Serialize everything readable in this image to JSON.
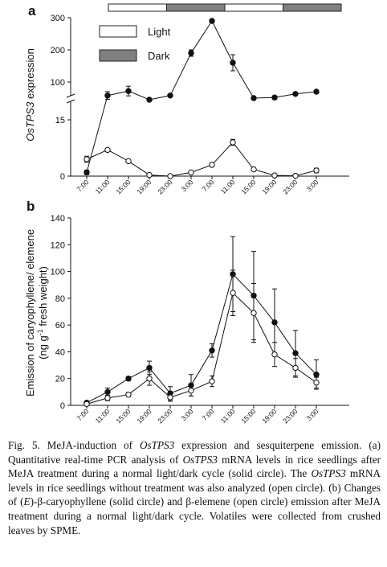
{
  "caption": {
    "p1": "Fig. 5. MeJA-induction of ",
    "p2": "OsTPS3",
    "p3": " expression and sesquiterpene emission. (a) Quantitative real-time PCR analysis of ",
    "p4": "OsTPS3",
    "p5": " mRNA levels in rice seedlings after MeJA treatment during a normal light/dark cycle (solid circle). The ",
    "p6": "OsTPS3",
    "p7": " mRNA levels in rice seedlings without treatment was also analyzed (open circle). (b) Changes of (",
    "p8": "E",
    "p9": ")-β-caryophyllene (solid circle) and β-elemene (open circle) emission after MeJA treatment during a normal light/dark cycle. Volatiles were collected from crushed leaves by SPME."
  },
  "chart_data": [
    {
      "type": "line",
      "panel_label": "a",
      "ylabel_italic": "OsTPS3",
      "ylabel_rest": " expression",
      "legend": [
        {
          "label": "Light",
          "swatch": "#ffffff"
        },
        {
          "label": "Dark",
          "swatch": "#808080"
        }
      ],
      "light_dark_bar": [
        "light",
        "dark",
        "light",
        "dark"
      ],
      "axis_break": true,
      "lower_range": [
        0,
        20
      ],
      "upper_range": [
        50,
        300
      ],
      "lower_ticks": [
        0,
        15
      ],
      "upper_ticks": [
        100,
        200,
        300
      ],
      "categories": [
        "7:00",
        "11:00",
        "15:00",
        "19:00",
        "23:00",
        "3:00",
        "7:00",
        "11:00",
        "15:00",
        "19:00",
        "23:00",
        "3:00"
      ],
      "series": [
        {
          "marker": "filled",
          "values": [
            1,
            58,
            72,
            45,
            58,
            190,
            290,
            160,
            50,
            52,
            63,
            70
          ],
          "errors": [
            0.6,
            12,
            15,
            4,
            4,
            10,
            5,
            25,
            4,
            5,
            4,
            4
          ]
        },
        {
          "marker": "open",
          "values": [
            4.5,
            7,
            4,
            0.3,
            0,
            1,
            3,
            9,
            1.8,
            0.2,
            0.1,
            1.5
          ],
          "errors": [
            0.8,
            0.4,
            0.3,
            0.1,
            0.1,
            0.2,
            0.4,
            0.8,
            0.2,
            0.1,
            0.1,
            0.6
          ]
        }
      ]
    },
    {
      "type": "line",
      "panel_label": "b",
      "ylabel_line1": "Emission of caryophyllene/ elemene",
      "ylabel_line2": "(ng g",
      "ylabel_sup": "-1",
      "ylabel_line2_rest": " fresh weight)",
      "ylim": [
        0,
        140
      ],
      "yticks": [
        0,
        20,
        40,
        60,
        80,
        100,
        120,
        140
      ],
      "categories": [
        "7:00",
        "11:00",
        "15:00",
        "19:00",
        "23:00",
        "3:00",
        "7:00",
        "11:00",
        "15:00",
        "19:00",
        "23:00",
        "3:00"
      ],
      "series": [
        {
          "marker": "filled",
          "values": [
            2,
            10,
            20,
            28,
            9,
            15,
            41,
            98,
            82,
            62,
            39,
            23
          ],
          "errors": [
            1,
            3,
            1.5,
            5,
            5,
            8,
            5,
            28,
            33,
            25,
            17,
            11
          ]
        },
        {
          "marker": "open",
          "values": [
            1,
            5.5,
            8,
            20,
            6,
            11,
            18,
            84,
            69,
            38,
            28,
            17
          ],
          "errors": [
            1,
            2,
            1.5,
            5,
            3,
            4,
            4,
            17,
            22,
            9,
            7,
            4
          ]
        }
      ]
    }
  ]
}
